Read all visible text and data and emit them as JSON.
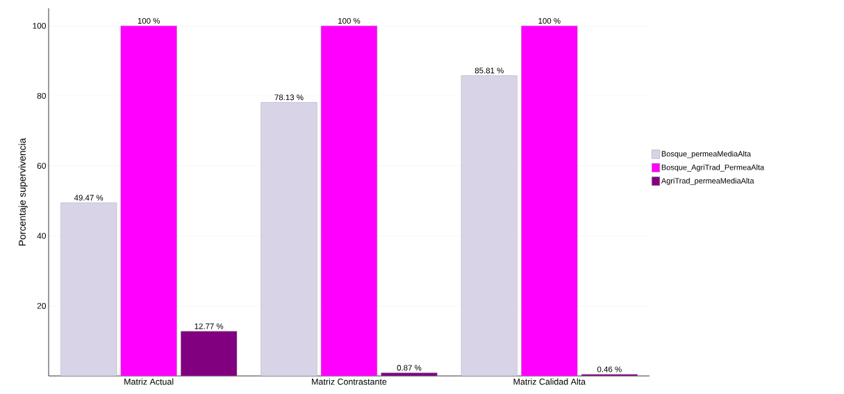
{
  "chart_data": {
    "type": "bar",
    "ylabel": "Porcentaje supervivencia",
    "categories": [
      "Matriz Actual",
      "Matriz Contrastante",
      "Matriz Calidad Alta"
    ],
    "series": [
      {
        "name": "Bosque_permeaMediaAlta",
        "color": "#d9d3e8",
        "values": [
          49.47,
          78.13,
          85.81
        ],
        "value_labels": [
          "49.47 %",
          "78.13 %",
          "85.81 %"
        ]
      },
      {
        "name": "Bosque_AgriTrad_PermeaAlta",
        "color": "#ff00ff",
        "values": [
          100,
          100,
          100
        ],
        "value_labels": [
          "100 %",
          "100 %",
          "100 %"
        ]
      },
      {
        "name": "AgriTrad_permeaMediaAlta",
        "color": "#800080",
        "values": [
          12.77,
          0.87,
          0.46
        ],
        "value_labels": [
          "12.77 %",
          "0.87 %",
          "0.46 %"
        ]
      }
    ],
    "ylim": [
      0,
      105
    ],
    "yticks": [
      20,
      40,
      60,
      80,
      100
    ],
    "grid": "y",
    "legend": "right"
  }
}
